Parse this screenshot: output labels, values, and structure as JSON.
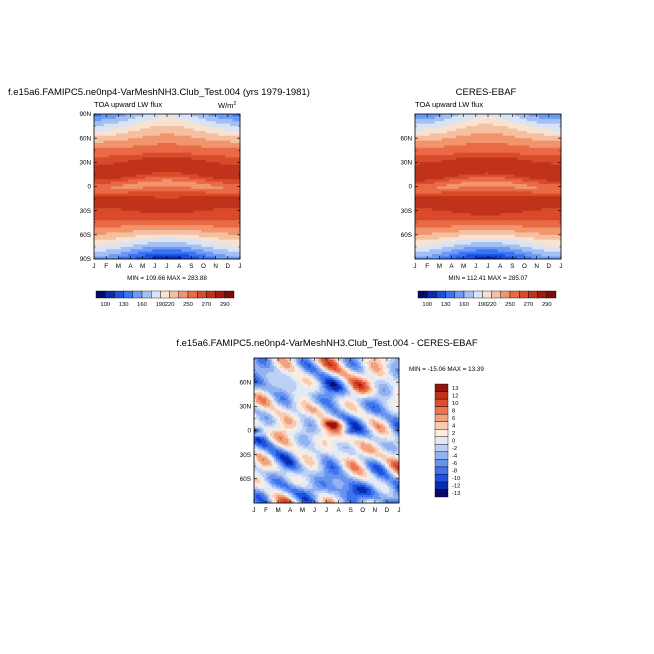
{
  "chart_data": [
    {
      "type": "heatmap",
      "title": "f.e15a6.FAMIPC5.ne0np4-VarMeshNH3.Club_Test.004 (yrs 1979-1981)",
      "subtitle": "TOA upward LW flux",
      "units": "W/m",
      "units_superscript": "2",
      "x_ticks": [
        "J",
        "F",
        "M",
        "A",
        "M",
        "J",
        "J",
        "A",
        "S",
        "O",
        "N",
        "D",
        "J"
      ],
      "y_ticks": [
        "90N",
        "60N",
        "30N",
        "0",
        "30S",
        "60S",
        "90S"
      ],
      "ylim": [
        -90,
        90
      ],
      "min_max_text": "MIN = 109.66  MAX = 283.88",
      "colorbar_labels": [
        "100",
        "130",
        "160",
        "190",
        "220",
        "250",
        "270",
        "290"
      ]
    },
    {
      "type": "heatmap",
      "title": "CERES-EBAF",
      "subtitle": "TOA upward LW flux",
      "x_ticks": [
        "J",
        "F",
        "M",
        "A",
        "M",
        "J",
        "J",
        "A",
        "S",
        "O",
        "N",
        "D",
        "J"
      ],
      "y_ticks": [
        "60N",
        "30N",
        "0",
        "30S",
        "60S"
      ],
      "ylim": [
        -90,
        90
      ],
      "min_max_text": "MIN = 112.41  MAX = 285.07",
      "colorbar_labels": [
        "100",
        "130",
        "160",
        "190",
        "220",
        "250",
        "270",
        "290"
      ]
    },
    {
      "type": "heatmap",
      "title": "f.e15a6.FAMIPC5.ne0np4-VarMeshNH3.Club_Test.004 - CERES-EBAF",
      "x_ticks": [
        "J",
        "F",
        "M",
        "A",
        "M",
        "J",
        "J",
        "A",
        "S",
        "O",
        "N",
        "D",
        "J"
      ],
      "y_ticks": [
        "60N",
        "30N",
        "0",
        "30S",
        "60S"
      ],
      "ylim": [
        -90,
        90
      ],
      "min_max_text": "MIN = -15.06  MAX = 13.39",
      "colorbar_labels": [
        "13",
        "12",
        "10",
        "8",
        "6",
        "4",
        "2",
        "0",
        "-2",
        "-4",
        "-6",
        "-8",
        "-10",
        "-12",
        "-13"
      ]
    }
  ],
  "colors": {
    "abs_scale": [
      "#08086b",
      "#0a2cb0",
      "#1a4fe0",
      "#3a74f2",
      "#6d9af5",
      "#a4c0f2",
      "#d8e4f5",
      "#f8e2d2",
      "#f5c0a1",
      "#f2946c",
      "#e96a44",
      "#d94a2a",
      "#c0321a",
      "#a01c10",
      "#7d0c08"
    ],
    "diff_scale": [
      "#08086b",
      "#0a2cb0",
      "#1d50e0",
      "#3d74ee",
      "#6793ef",
      "#93b2f1",
      "#bcd0f3",
      "#e2eaf8",
      "#fbebe0",
      "#f7cdb2",
      "#f3a27f",
      "#ec7550",
      "#dd4d2e",
      "#c3301a",
      "#8e1810"
    ]
  }
}
